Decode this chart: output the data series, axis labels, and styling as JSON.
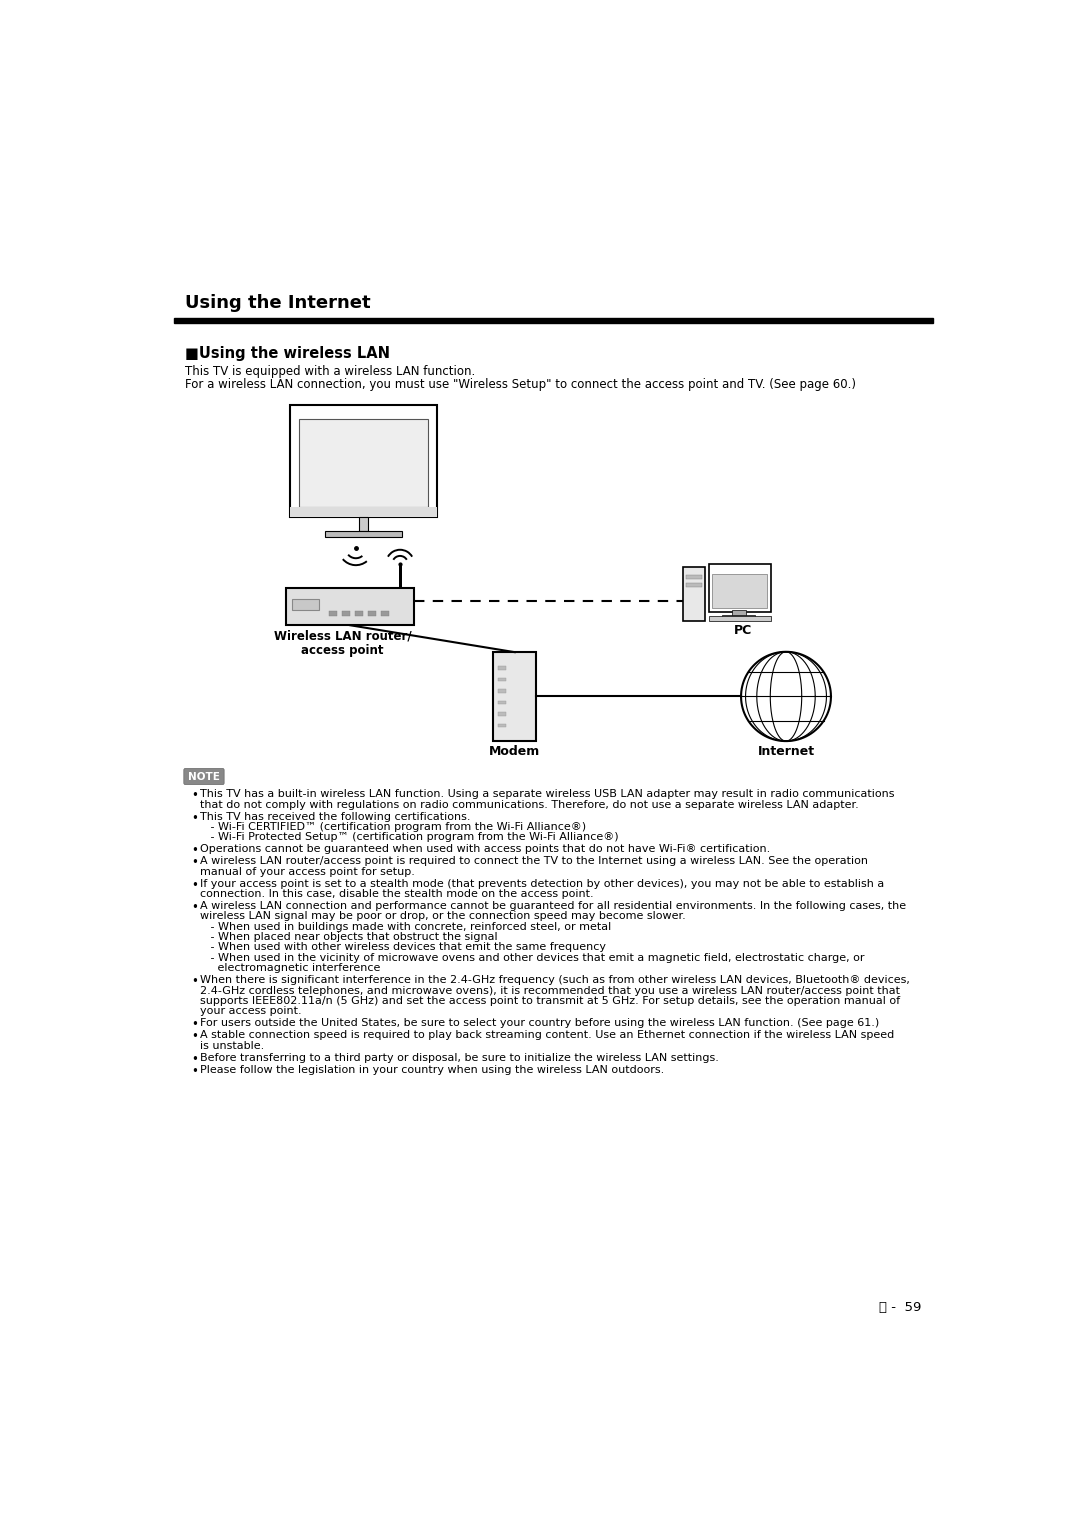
{
  "title": "Using the Internet",
  "section_title": "■Using the wireless LAN",
  "intro_line1": "This TV is equipped with a wireless LAN function.",
  "intro_line2": "For a wireless LAN connection, you must use \"Wireless Setup\" to connect the access point and TV. (See page 60.)",
  "label_router": "Wireless LAN router/\naccess point",
  "label_modem": "Modem",
  "label_internet": "Internet",
  "label_pc": "PC",
  "note_label": "NOTE",
  "note_bullets": [
    "This TV has a built-in wireless LAN function. Using a separate wireless USB LAN adapter may result in radio communications\nthat do not comply with regulations on radio communications. Therefore, do not use a separate wireless LAN adapter.",
    "This TV has received the following certifications.\n   - Wi-Fi CERTIFIED™ (certification program from the Wi-Fi Alliance®)\n   - Wi-Fi Protected Setup™ (certification program from the Wi-Fi Alliance®)",
    "Operations cannot be guaranteed when used with access points that do not have Wi-Fi® certification.",
    "A wireless LAN router/access point is required to connect the TV to the Internet using a wireless LAN. See the operation\nmanual of your access point for setup.",
    "If your access point is set to a stealth mode (that prevents detection by other devices), you may not be able to establish a\nconnection. In this case, disable the stealth mode on the access point.",
    "A wireless LAN connection and performance cannot be guaranteed for all residential environments. In the following cases, the\nwireless LAN signal may be poor or drop, or the connection speed may become slower.\n   - When used in buildings made with concrete, reinforced steel, or metal\n   - When placed near objects that obstruct the signal\n   - When used with other wireless devices that emit the same frequency\n   - When used in the vicinity of microwave ovens and other devices that emit a magnetic field, electrostatic charge, or\n     electromagnetic interference",
    "When there is significant interference in the 2.4-GHz frequency (such as from other wireless LAN devices, Bluetooth® devices,\n2.4-GHz cordless telephones, and microwave ovens), it is recommended that you use a wireless LAN router/access point that\nsupports IEEE802.11a/n (5 GHz) and set the access point to transmit at 5 GHz. For setup details, see the operation manual of\nyour access point.",
    "For users outside the United States, be sure to select your country before using the wireless LAN function. (See page 61.)",
    "A stable connection speed is required to play back streaming content. Use an Ethernet connection if the wireless LAN speed\nis unstable.",
    "Before transferring to a third party or disposal, be sure to initialize the wireless LAN settings.",
    "Please follow the legislation in your country when using the wireless LAN outdoors."
  ],
  "page_number": "59",
  "bg_color": "#ffffff",
  "text_color": "#000000"
}
